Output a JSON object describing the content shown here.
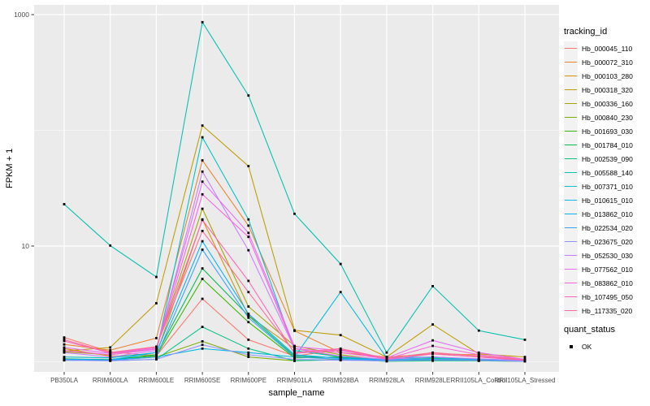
{
  "figure": {
    "xlabel": "sample_name",
    "ylabel": "FPKM + 1",
    "tracking_legend_title": "tracking_id",
    "quant_legend_title": "quant_status",
    "quant_items": [
      {
        "label": "OK",
        "marker": "black-square"
      }
    ],
    "panel_bg": "#EBEBEB",
    "grid_color": "#FFFFFF",
    "tick_text_color": "#4D4D4D"
  },
  "chart_data": {
    "type": "line",
    "title": "",
    "xlabel": "sample_name",
    "ylabel": "FPKM + 1",
    "y_scale": "log10",
    "grid": true,
    "legend_position": "right",
    "point_marker": "black-square",
    "y_ticks": [
      {
        "value": 1000,
        "label": "1000"
      },
      {
        "value": 10,
        "label": "10"
      }
    ],
    "y_minor_gridlines": [
      100,
      1
    ],
    "y_range_approx": [
      0.82,
      1200
    ],
    "categories": [
      "PB350LA",
      "RRIM600LA",
      "RRIM600LE",
      "RRIM600SE",
      "RRIM600PE",
      "RRIM901LA",
      "RRIM928BA",
      "RRIM928LA",
      "RRIM928LE",
      "RRII105LA_Control",
      "RRII105LA_Stressed"
    ],
    "series": [
      {
        "name": "Hb_000045_110",
        "color": "#F8766D",
        "values": [
          1.62,
          1.22,
          1.12,
          3.5,
          1.55,
          1.12,
          1.27,
          1.05,
          1.17,
          1.1,
          1.03
        ]
      },
      {
        "name": "Hb_000072_310",
        "color": "#EA8331",
        "values": [
          1.41,
          1.26,
          1.6,
          55,
          15,
          1.85,
          1.2,
          1.1,
          1.17,
          1.15,
          1.05
        ]
      },
      {
        "name": "Hb_000103_280",
        "color": "#D89000",
        "values": [
          1.3,
          1.12,
          1.15,
          17,
          2.5,
          1.3,
          1.1,
          1.05,
          1.1,
          1.05,
          1.02
        ]
      },
      {
        "name": "Hb_000318_320",
        "color": "#C09B00",
        "values": [
          1.24,
          1.33,
          3.2,
          110,
          49,
          1.87,
          1.7,
          1.1,
          2.1,
          1.17,
          1.1
        ]
      },
      {
        "name": "Hb_000336_160",
        "color": "#A3A500",
        "values": [
          1.22,
          1.15,
          1.3,
          21,
          3.0,
          1.37,
          1.15,
          1.03,
          1.05,
          1.04,
          1.02
        ]
      },
      {
        "name": "Hb_000840_230",
        "color": "#7CAE00",
        "values": [
          1.05,
          1.03,
          1.1,
          1.5,
          1.1,
          1.02,
          1.05,
          1.01,
          1.03,
          1.02,
          1.01
        ]
      },
      {
        "name": "Hb_001693_030",
        "color": "#39B600",
        "values": [
          1.04,
          1.05,
          1.12,
          5.2,
          2.2,
          1.08,
          1.1,
          1.02,
          1.05,
          1.03,
          1.02
        ]
      },
      {
        "name": "Hb_001784_010",
        "color": "#00BB4E",
        "values": [
          1.06,
          1.04,
          1.15,
          6.4,
          2.5,
          1.12,
          1.08,
          1.03,
          1.06,
          1.04,
          1.03
        ]
      },
      {
        "name": "Hb_002539_090",
        "color": "#00C087",
        "values": [
          1.03,
          1.02,
          1.05,
          2.0,
          1.3,
          1.02,
          1.04,
          1.01,
          1.02,
          1.02,
          1.01
        ]
      },
      {
        "name": "Hb_005588_140",
        "color": "#00C0AF",
        "values": [
          23,
          10.1,
          5.4,
          860,
          200,
          19,
          7.0,
          1.2,
          4.5,
          1.86,
          1.55
        ]
      },
      {
        "name": "Hb_007371_010",
        "color": "#00BFC4",
        "values": [
          1.1,
          1.08,
          1.2,
          87,
          17,
          1.25,
          1.1,
          1.05,
          1.08,
          1.05,
          1.03
        ]
      },
      {
        "name": "Hb_010615_010",
        "color": "#00BAE0",
        "values": [
          1.05,
          1.04,
          1.1,
          1.3,
          1.2,
          1.1,
          4.0,
          1.08,
          1.1,
          1.05,
          1.03
        ]
      },
      {
        "name": "Hb_013862_010",
        "color": "#00B0F6",
        "values": [
          1.05,
          1.04,
          1.2,
          11,
          2.6,
          1.15,
          1.07,
          1.04,
          1.05,
          1.04,
          1.02
        ]
      },
      {
        "name": "Hb_022534_020",
        "color": "#35A2FF",
        "values": [
          1.04,
          1.03,
          1.1,
          9.3,
          2.4,
          1.1,
          1.05,
          1.03,
          1.04,
          1.03,
          1.02
        ]
      },
      {
        "name": "Hb_023675_020",
        "color": "#9590FF",
        "values": [
          1.03,
          1.02,
          1.05,
          1.4,
          1.15,
          1.05,
          1.03,
          1.02,
          1.04,
          1.03,
          1.01
        ]
      },
      {
        "name": "Hb_052530_030",
        "color": "#C77CFF",
        "values": [
          1.2,
          1.1,
          1.25,
          44,
          9.2,
          1.3,
          1.12,
          1.05,
          1.1,
          1.06,
          1.03
        ]
      },
      {
        "name": "Hb_077562_010",
        "color": "#E76BF3",
        "values": [
          1.33,
          1.18,
          1.3,
          36,
          13,
          1.35,
          1.25,
          1.08,
          1.53,
          1.2,
          1.05
        ]
      },
      {
        "name": "Hb_083862_010",
        "color": "#FA62DB",
        "values": [
          1.25,
          1.15,
          1.28,
          28,
          12,
          1.3,
          1.2,
          1.06,
          1.37,
          1.15,
          1.04
        ]
      },
      {
        "name": "Hb_107495_050",
        "color": "#FF62BC",
        "values": [
          1.51,
          1.19,
          1.33,
          16.8,
          5.0,
          1.18,
          1.27,
          1.05,
          1.17,
          1.1,
          1.03
        ]
      },
      {
        "name": "Hb_117335_020",
        "color": "#FF6A98",
        "values": [
          1.55,
          1.2,
          1.35,
          13.5,
          4.0,
          1.2,
          1.3,
          1.07,
          1.2,
          1.12,
          1.04
        ]
      }
    ]
  }
}
